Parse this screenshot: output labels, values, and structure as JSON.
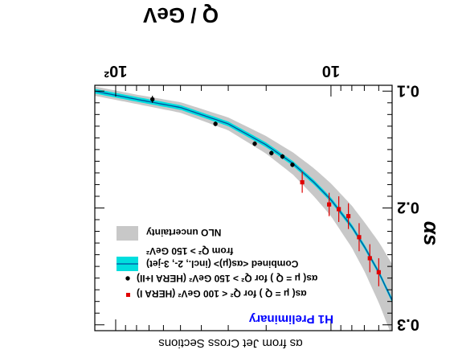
{
  "chart_data": {
    "type": "scatter",
    "title": "αs from Jet Cross Sections",
    "tag": "H1 Preliminary",
    "xlabel": "Q / GeV",
    "ylabel": "αs",
    "xscale": "log",
    "xlim": [
      5.2,
      125
    ],
    "ylim": [
      0.095,
      0.305
    ],
    "xticks": [
      {
        "value": 10,
        "label": "10"
      },
      {
        "value": 100,
        "label": "10²"
      }
    ],
    "yticks": [
      {
        "value": 0.1,
        "label": "0.1"
      },
      {
        "value": 0.2,
        "label": "0.2"
      },
      {
        "value": 0.3,
        "label": "0.3"
      }
    ],
    "legend": {
      "placement": "top-right",
      "entries": [
        {
          "id": "hera1",
          "text": "αs( μ = Q ) for Q² < 100 GeV² (HERA I)",
          "marker": "red-square"
        },
        {
          "id": "hera12",
          "text": "αs( μ = Q ) for Q² > 150 GeV² (HERA I+II)",
          "marker": "black-dot"
        },
        {
          "id": "combined",
          "text": "Combined <αs(μ)> (incl., 2-, 3-jet)",
          "text2": "from Q² > 150 GeV²",
          "marker": "band-cyan"
        },
        {
          "id": "nlo",
          "text": "NLO uncertainty",
          "marker": "band-gray"
        }
      ]
    },
    "series": [
      {
        "name": "αs( μ = Q ) for Q² < 100 GeV² (HERA I)",
        "color": "#e00000",
        "x": [
          6.0,
          6.6,
          7.4,
          8.3,
          9.2,
          10.2,
          13.6
        ],
        "y": [
          0.255,
          0.243,
          0.225,
          0.207,
          0.201,
          0.197,
          0.178
        ],
        "err": [
          0.012,
          0.012,
          0.012,
          0.011,
          0.011,
          0.01,
          0.009
        ]
      },
      {
        "name": "αs( μ = Q ) for Q² > 150 GeV² (HERA I+II)",
        "color": "#000000",
        "x": [
          15.1,
          16.8,
          18.9,
          22.6,
          34.4,
          67.5
        ],
        "y": [
          0.163,
          0.156,
          0.153,
          0.145,
          0.128,
          0.107
        ],
        "err": [
          0.002,
          0.002,
          0.002,
          0.002,
          0.002,
          0.003
        ]
      }
    ],
    "curve": {
      "name": "Combined <αs(μ)> (incl., 2-, 3-jet)",
      "line_color": "#004fa0",
      "band_color": "#00dede",
      "nlo_color": "#c8c8c8",
      "x": [
        5.2,
        6,
        7,
        8,
        10,
        12,
        15,
        20,
        30,
        50,
        80,
        125
      ],
      "y": [
        0.279,
        0.255,
        0.233,
        0.216,
        0.193,
        0.178,
        0.162,
        0.146,
        0.128,
        0.114,
        0.107,
        0.1
      ],
      "band": [
        0.002,
        0.002,
        0.002,
        0.002,
        0.002,
        0.002,
        0.002,
        0.002,
        0.002,
        0.002,
        0.002,
        0.002
      ],
      "nlo": [
        0.031,
        0.026,
        0.021,
        0.018,
        0.014,
        0.012,
        0.0095,
        0.0075,
        0.0055,
        0.0045,
        0.004,
        0.004
      ]
    }
  }
}
